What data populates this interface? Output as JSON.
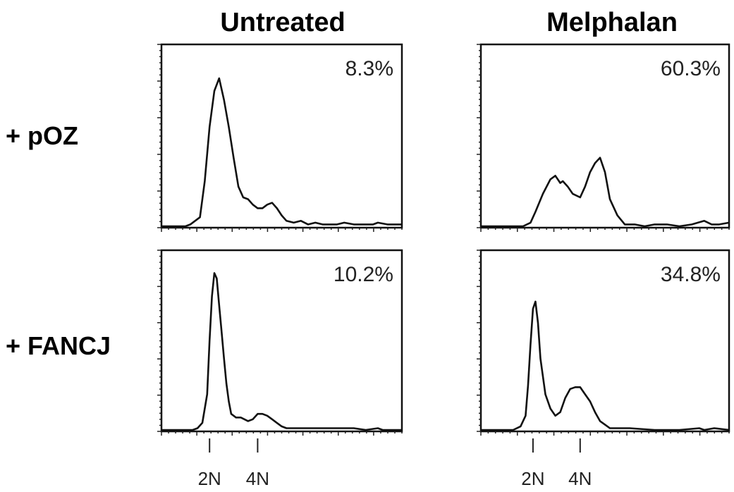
{
  "figure": {
    "columns": [
      "Untreated",
      "Melphalan"
    ],
    "rows": [
      "+ pOZ",
      "+ FANCJ"
    ]
  },
  "chart_data": [
    {
      "type": "line",
      "column": "Untreated",
      "row": "+ pOZ",
      "annotation": "8.3%",
      "xlim": [
        0,
        100
      ],
      "ylim": [
        0,
        100
      ],
      "x_tick_labels": [],
      "x": [
        0,
        10,
        12,
        16,
        18,
        20,
        22,
        24,
        26,
        28,
        30,
        32,
        34,
        36,
        38,
        40,
        42,
        44,
        46,
        48,
        50,
        52,
        55,
        58,
        61,
        64,
        67,
        70,
        73,
        76,
        80,
        84,
        88,
        90,
        94,
        96,
        100
      ],
      "y": [
        0,
        0,
        1,
        5,
        25,
        55,
        75,
        82,
        70,
        55,
        38,
        22,
        16,
        15,
        12,
        10,
        10,
        12,
        13,
        10,
        6,
        3,
        2,
        3,
        1,
        2,
        1,
        1,
        1,
        2,
        1,
        1,
        1,
        2,
        1,
        1,
        1
      ]
    },
    {
      "type": "line",
      "column": "Melphalan",
      "row": "+ pOZ",
      "annotation": "60.3%",
      "xlim": [
        0,
        100
      ],
      "ylim": [
        0,
        100
      ],
      "x_tick_labels": [],
      "x": [
        0,
        17,
        20,
        22,
        25,
        28,
        30,
        32,
        33,
        35,
        37,
        40,
        42,
        44,
        46,
        48,
        50,
        52,
        55,
        58,
        62,
        66,
        70,
        75,
        80,
        85,
        90,
        93,
        96,
        100
      ],
      "y": [
        0,
        0,
        2,
        8,
        18,
        26,
        28,
        24,
        25,
        22,
        18,
        16,
        22,
        30,
        35,
        38,
        30,
        15,
        6,
        1,
        1,
        0,
        1,
        1,
        0,
        1,
        3,
        1,
        1,
        2
      ]
    },
    {
      "type": "line",
      "column": "Untreated",
      "row": "+ FANCJ",
      "annotation": "10.2%",
      "xlim": [
        0,
        100
      ],
      "ylim": [
        0,
        100
      ],
      "x_tick_labels": [
        "2N",
        "4N"
      ],
      "x_tick_values": [
        20,
        40
      ],
      "x": [
        0,
        13,
        15,
        17,
        19,
        20,
        21,
        22,
        23,
        24,
        25,
        26,
        27,
        28,
        29,
        31,
        33,
        36,
        38,
        40,
        42,
        44,
        46,
        48,
        50,
        52,
        55,
        60,
        70,
        80,
        85,
        90,
        92,
        100
      ],
      "y": [
        0,
        0,
        1,
        4,
        20,
        50,
        75,
        88,
        85,
        70,
        55,
        40,
        26,
        16,
        9,
        7,
        7,
        5,
        6,
        9,
        9,
        8,
        6,
        4,
        2,
        1,
        1,
        1,
        1,
        1,
        0,
        1,
        0,
        0
      ]
    },
    {
      "type": "line",
      "column": "Melphalan",
      "row": "+ FANCJ",
      "annotation": "34.8%",
      "xlim": [
        0,
        100
      ],
      "ylim": [
        0,
        100
      ],
      "x_tick_labels": [
        "2N",
        "4N"
      ],
      "x_tick_values": [
        21,
        40
      ],
      "x": [
        0,
        13,
        16,
        18,
        19,
        20,
        21,
        22,
        23,
        24,
        26,
        28,
        30,
        32,
        34,
        36,
        38,
        40,
        42,
        44,
        46,
        48,
        50,
        52,
        55,
        60,
        70,
        80,
        88,
        90,
        94,
        100
      ],
      "y": [
        0,
        0,
        2,
        8,
        25,
        48,
        68,
        72,
        60,
        40,
        20,
        12,
        8,
        10,
        18,
        23,
        24,
        24,
        20,
        16,
        10,
        5,
        3,
        1,
        1,
        1,
        0,
        0,
        1,
        0,
        1,
        0
      ]
    }
  ]
}
